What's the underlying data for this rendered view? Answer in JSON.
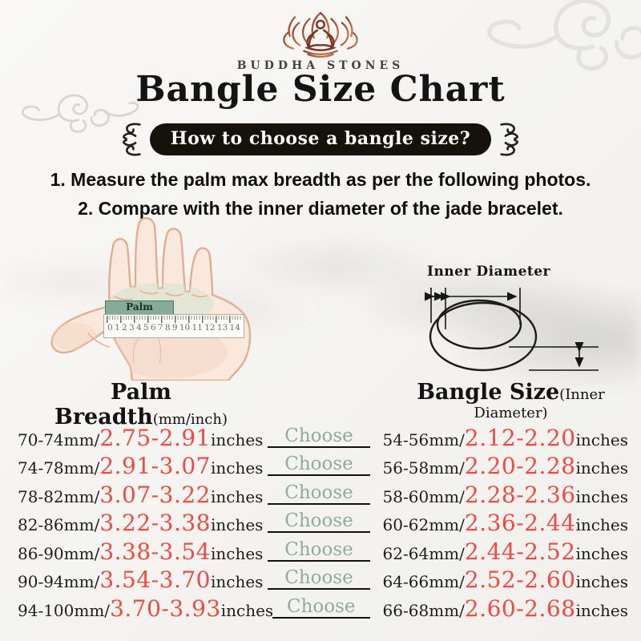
{
  "brand": {
    "name": "BUDDHA STONES",
    "logo_icon": "lotus-meditation"
  },
  "title": "Bangle Size Chart",
  "banner": {
    "text": "How to choose a bangle size?"
  },
  "instructions": {
    "line1": "1. Measure the palm max breadth as per the following photos.",
    "line2": "2. Compare with the inner diameter of the jade bracelet."
  },
  "palm_diagram": {
    "label": "Palm Breadth",
    "ruler_numbers": [
      "0",
      "1",
      "2",
      "3",
      "4",
      "5",
      "6",
      "7",
      "8",
      "9",
      "10",
      "11",
      "12",
      "13",
      "14"
    ]
  },
  "bangle_diagram": {
    "label": "Inner Diameter"
  },
  "table": {
    "left_header": {
      "title": "Palm Breadth",
      "subtitle": "(mm/inch)"
    },
    "right_header": {
      "title": "Bangle Size",
      "subtitle": "(Inner Diameter)"
    },
    "unit": "inches",
    "choose_label": "Choose",
    "rows": [
      {
        "palm_mm": "70-74mm/",
        "palm_in": "2.75-2.91",
        "bangle_mm": "54-56mm/",
        "bangle_in": "2.12-2.20"
      },
      {
        "palm_mm": "74-78mm/",
        "palm_in": "2.91-3.07",
        "bangle_mm": "56-58mm/",
        "bangle_in": "2.20-2.28"
      },
      {
        "palm_mm": "78-82mm/",
        "palm_in": "3.07-3.22",
        "bangle_mm": "58-60mm/",
        "bangle_in": "2.28-2.36"
      },
      {
        "palm_mm": "82-86mm/",
        "palm_in": "3.22-3.38",
        "bangle_mm": "60-62mm/",
        "bangle_in": "2.36-2.44"
      },
      {
        "palm_mm": "86-90mm/",
        "palm_in": "3.38-3.54",
        "bangle_mm": "62-64mm/",
        "bangle_in": "2.44-2.52"
      },
      {
        "palm_mm": "90-94mm/",
        "palm_in": "3.54-3.70",
        "bangle_mm": "64-66mm/",
        "bangle_in": "2.52-2.60"
      },
      {
        "palm_mm": "94-100mm/",
        "palm_in": "3.70-3.93",
        "bangle_mm": "66-68mm/",
        "bangle_in": "2.60-2.68"
      }
    ]
  },
  "colors": {
    "accent_red": "#ef4a43",
    "choose_green": "#8fac9e",
    "palm_label_green": "#86ab97",
    "banner_black": "#17110c",
    "logo_brown": "#9c4630",
    "background": "#f6f5f2"
  }
}
